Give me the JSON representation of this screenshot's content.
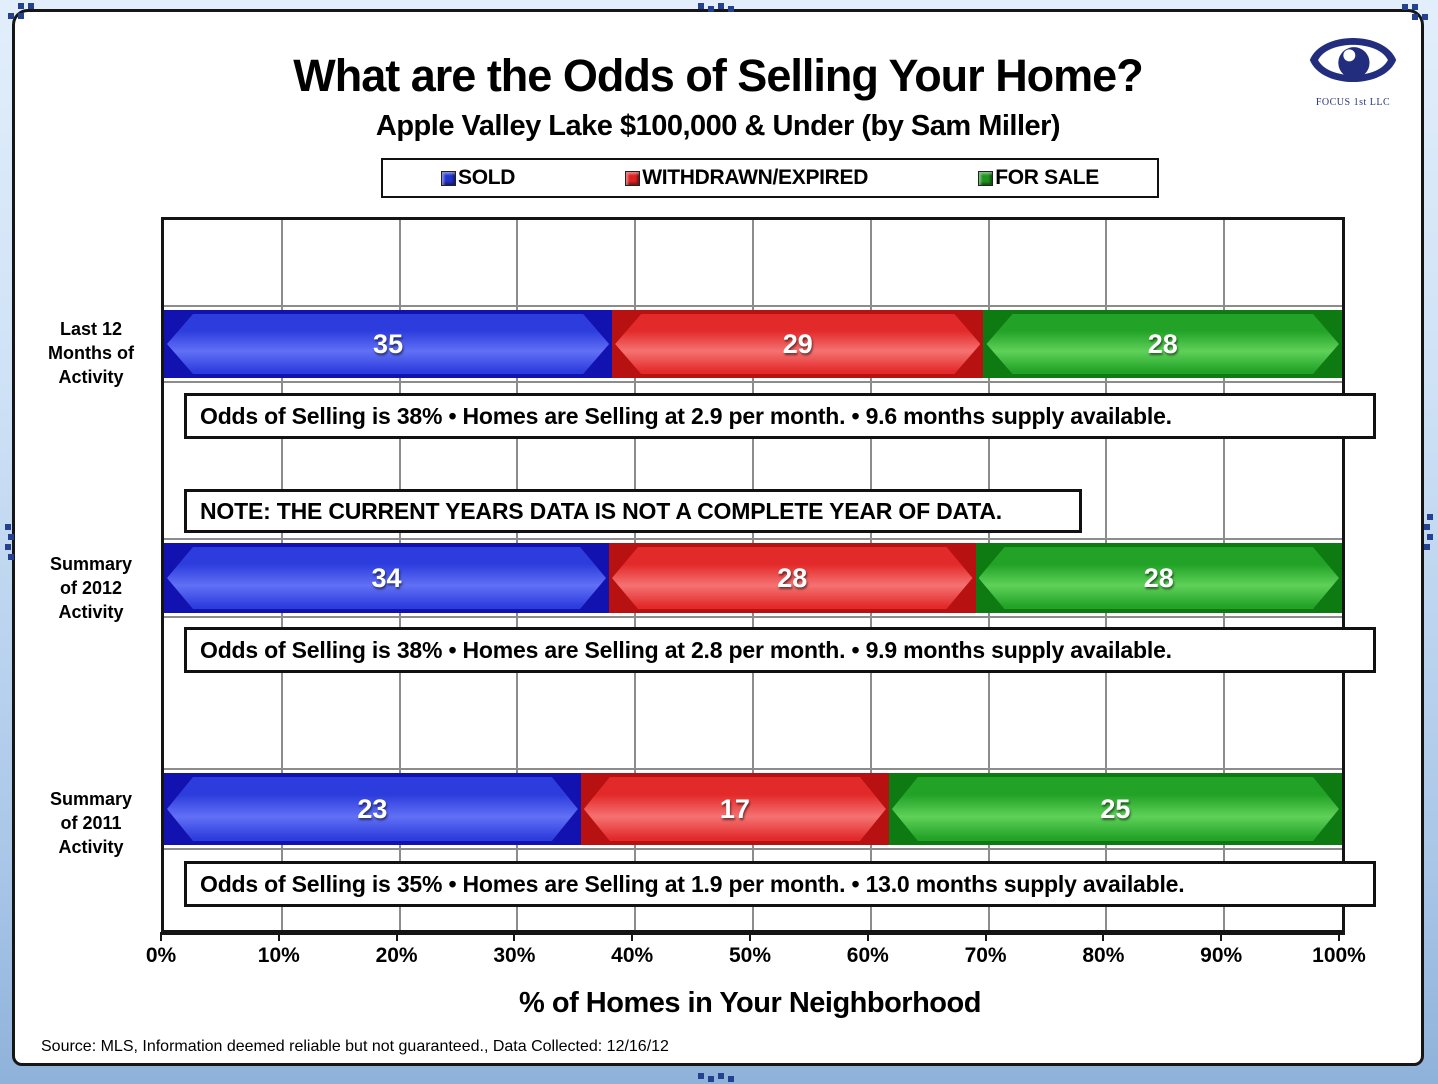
{
  "window": {
    "frame_color": "#a9c6e8",
    "handle_color": "#24418f"
  },
  "header": {
    "title": "What are the Odds of Selling Your Home?",
    "subtitle": "Apple Valley Lake $100,000 & Under (by Sam Miller)",
    "logo_text": "FOCUS 1st LLC",
    "logo_color": "#222d7e"
  },
  "chart_data": {
    "type": "bar",
    "orientation": "horizontal",
    "stacking": "100%",
    "title": "What are the Odds of Selling Your Home?",
    "subtitle": "Apple Valley Lake $100,000 & Under (by Sam Miller)",
    "categories": [
      "Last 12 Months of Activity",
      "Summary of 2012 Activity",
      "Summary of 2011 Activity"
    ],
    "category_label_lines": [
      [
        "Last 12",
        "Months of",
        "Activity"
      ],
      [
        "Summary",
        "of 2012",
        "Activity"
      ],
      [
        "Summary",
        "of 2011",
        "Activity"
      ]
    ],
    "series": [
      {
        "name": "SOLD",
        "values": [
          35,
          34,
          23
        ],
        "colors": {
          "base": "#2233cc",
          "dark": "#1212b0",
          "mid": "#2d3ddd",
          "light": "#6170f5"
        }
      },
      {
        "name": "WITHDRAWN/EXPIRED",
        "values": [
          29,
          28,
          17
        ],
        "colors": {
          "base": "#dd2222",
          "dark": "#b81111",
          "mid": "#e32a2a",
          "light": "#f57272"
        }
      },
      {
        "name": "FOR SALE",
        "values": [
          28,
          28,
          25
        ],
        "colors": {
          "base": "#1f9420",
          "dark": "#0d7a12",
          "mid": "#22a227",
          "light": "#5fd159"
        }
      }
    ],
    "x_ticks": [
      "0%",
      "10%",
      "20%",
      "30%",
      "40%",
      "50%",
      "60%",
      "70%",
      "80%",
      "90%",
      "100%"
    ],
    "xlim": [
      0,
      100
    ],
    "xlabel": "% of Homes in Your Neighborhood",
    "grid": "vertical-major",
    "grid_color": "#8c8c8c",
    "legend_position": "top-center",
    "annotations": [
      {
        "row": 0,
        "kind": "stats",
        "text": "Odds of Selling is 38%  •  Homes are Selling at 2.9 per month.  •  9.6 months supply available."
      },
      {
        "row": 1,
        "kind": "note",
        "text": "NOTE: THE CURRENT YEARS DATA IS NOT A COMPLETE YEAR OF DATA."
      },
      {
        "row": 1,
        "kind": "stats",
        "text": "Odds of Selling is 38%  •  Homes are Selling at 2.8 per month.  •  9.9 months supply available."
      },
      {
        "row": 2,
        "kind": "stats",
        "text": "Odds of Selling is 35%  •  Homes are Selling at 1.9 per month.  •  13.0 months supply available."
      }
    ]
  },
  "footer": {
    "source": "Source: MLS, Information deemed reliable but not guaranteed., Data Collected: 12/16/12"
  }
}
